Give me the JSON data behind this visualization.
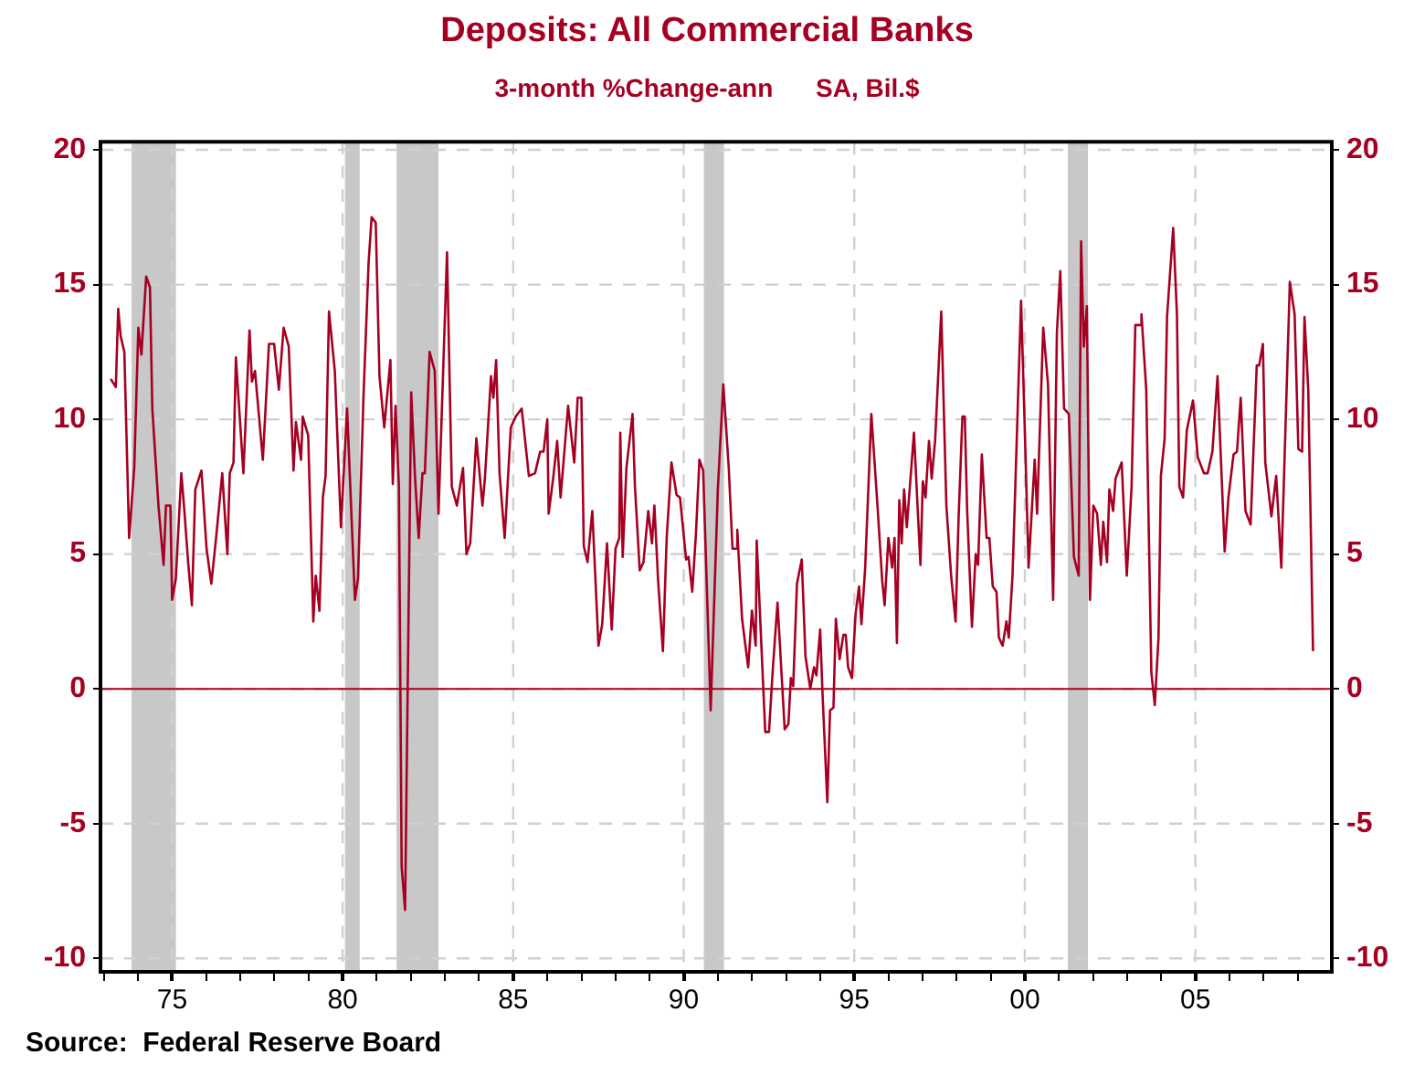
{
  "chart_data": {
    "type": "line",
    "title": "Deposits: All Commercial Banks",
    "subtitle": "3-month %Change-ann      SA, Bil.$",
    "annotations": [
      "Source:  Federal Reserve Board"
    ],
    "x": [
      1973.2,
      1973.35,
      1973.42,
      1973.49,
      1973.6,
      1973.74,
      1973.89,
      1974.01,
      1974.1,
      1974.24,
      1974.35,
      1974.42,
      1974.6,
      1974.75,
      1974.82,
      1974.95,
      1975.0,
      1975.11,
      1975.27,
      1975.36,
      1975.47,
      1975.58,
      1975.68,
      1975.86,
      1976.01,
      1976.15,
      1976.29,
      1976.47,
      1976.62,
      1976.69,
      1976.8,
      1976.87,
      1977.09,
      1977.27,
      1977.34,
      1977.43,
      1977.66,
      1977.84,
      1977.99,
      1978.13,
      1978.27,
      1978.42,
      1978.56,
      1978.63,
      1978.78,
      1978.83,
      1978.99,
      1979.14,
      1979.21,
      1979.32,
      1979.42,
      1979.5,
      1979.6,
      1979.77,
      1979.95,
      1980.13,
      1980.36,
      1980.45,
      1980.61,
      1980.76,
      1980.85,
      1980.97,
      1981.08,
      1981.22,
      1981.4,
      1981.47,
      1981.55,
      1981.65,
      1981.73,
      1981.83,
      1982.01,
      1982.12,
      1982.23,
      1982.34,
      1982.41,
      1982.55,
      1982.7,
      1982.81,
      1983.06,
      1983.2,
      1983.35,
      1983.53,
      1983.63,
      1983.74,
      1983.92,
      1984.1,
      1984.17,
      1984.35,
      1984.42,
      1984.5,
      1984.6,
      1984.75,
      1984.93,
      1985.07,
      1985.25,
      1985.46,
      1985.64,
      1985.79,
      1985.89,
      1986.0,
      1986.04,
      1986.18,
      1986.29,
      1986.39,
      1986.61,
      1986.79,
      1986.89,
      1987.0,
      1987.07,
      1987.18,
      1987.32,
      1987.5,
      1987.61,
      1987.75,
      1987.89,
      1988.0,
      1988.11,
      1988.14,
      1988.21,
      1988.32,
      1988.5,
      1988.57,
      1988.71,
      1988.82,
      1988.96,
      1989.07,
      1989.14,
      1989.25,
      1989.39,
      1989.5,
      1989.64,
      1989.79,
      1989.89,
      1990.07,
      1990.14,
      1990.25,
      1990.36,
      1990.46,
      1990.57,
      1990.79,
      1991.0,
      1991.16,
      1991.32,
      1991.43,
      1991.54,
      1991.57,
      1991.71,
      1991.89,
      1992.0,
      1992.11,
      1992.14,
      1992.39,
      1992.5,
      1992.61,
      1992.75,
      1992.96,
      1993.07,
      1993.14,
      1993.21,
      1993.32,
      1993.46,
      1993.57,
      1993.71,
      1993.82,
      1993.89,
      1994.0,
      1994.07,
      1994.21,
      1994.29,
      1994.39,
      1994.46,
      1994.57,
      1994.68,
      1994.75,
      1994.82,
      1994.93,
      1995.04,
      1995.14,
      1995.21,
      1995.32,
      1995.5,
      1995.68,
      1995.82,
      1995.89,
      1996.0,
      1996.11,
      1996.18,
      1996.25,
      1996.32,
      1996.39,
      1996.46,
      1996.54,
      1996.75,
      1996.94,
      1997.01,
      1997.09,
      1997.19,
      1997.27,
      1997.37,
      1997.55,
      1997.7,
      1997.84,
      1997.97,
      1998.06,
      1998.17,
      1998.24,
      1998.31,
      1998.45,
      1998.56,
      1998.63,
      1998.74,
      1998.88,
      1998.96,
      1999.06,
      1999.17,
      1999.24,
      1999.35,
      1999.46,
      1999.53,
      1999.64,
      1999.89,
      2000.0,
      2000.11,
      2000.29,
      2000.36,
      2000.54,
      2000.68,
      2000.83,
      2000.94,
      2001.04,
      2001.15,
      2001.29,
      2001.44,
      2001.58,
      2001.65,
      2001.73,
      2001.82,
      2001.91,
      2002.01,
      2002.12,
      2002.23,
      2002.3,
      2002.41,
      2002.48,
      2002.59,
      2002.66,
      2002.84,
      2002.99,
      2003.13,
      2003.24,
      2003.38,
      2003.42,
      2003.56,
      2003.71,
      2003.81,
      2003.92,
      2003.99,
      2004.1,
      2004.17,
      2004.35,
      2004.46,
      2004.53,
      2004.64,
      2004.75,
      2004.93,
      2005.07,
      2005.25,
      2005.36,
      2005.5,
      2005.65,
      2005.86,
      2005.97,
      2006.12,
      2006.22,
      2006.33,
      2006.47,
      2006.62,
      2006.8,
      2006.87,
      2006.98,
      2007.05,
      2007.23,
      2007.37,
      2007.52,
      2007.77,
      2007.91,
      2008.02,
      2008.13,
      2008.2,
      2008.31,
      2008.45
    ],
    "series": [
      {
        "color": "#a50021",
        "values": [
          11.5,
          11.2,
          14.1,
          13.1,
          12.5,
          5.6,
          8.2,
          13.4,
          12.4,
          15.3,
          14.9,
          10.4,
          6.8,
          4.6,
          6.8,
          6.8,
          3.3,
          4.1,
          8.0,
          6.6,
          4.7,
          3.1,
          7.4,
          8.1,
          5.2,
          3.9,
          5.6,
          8.0,
          5.0,
          8.0,
          8.4,
          12.3,
          8.0,
          13.3,
          11.4,
          11.8,
          8.5,
          12.8,
          12.8,
          11.1,
          13.4,
          12.7,
          8.1,
          9.9,
          8.5,
          10.1,
          9.4,
          2.5,
          4.2,
          2.9,
          7.1,
          7.9,
          14.0,
          11.8,
          6.0,
          10.4,
          3.3,
          4.1,
          10.8,
          15.8,
          17.5,
          17.3,
          11.6,
          9.7,
          12.2,
          7.6,
          10.5,
          7.5,
          -6.6,
          -8.2,
          11.0,
          7.9,
          5.6,
          8.0,
          8.0,
          12.5,
          11.8,
          6.5,
          16.2,
          7.5,
          6.8,
          8.2,
          5.0,
          5.4,
          9.3,
          6.8,
          7.8,
          11.6,
          10.8,
          12.2,
          8.0,
          5.6,
          9.7,
          10.1,
          10.4,
          7.9,
          8.0,
          8.8,
          8.8,
          10.0,
          6.5,
          7.9,
          9.2,
          7.1,
          10.5,
          8.4,
          10.8,
          10.8,
          5.3,
          4.7,
          6.6,
          1.6,
          2.4,
          5.4,
          2.2,
          5.2,
          5.6,
          9.5,
          4.9,
          8.2,
          10.2,
          7.5,
          4.4,
          4.7,
          6.6,
          5.4,
          6.8,
          4.0,
          1.4,
          5.6,
          8.4,
          7.2,
          7.1,
          4.8,
          4.9,
          3.6,
          5.8,
          8.5,
          8.1,
          -0.8,
          7.4,
          11.3,
          8.2,
          5.2,
          5.2,
          5.9,
          2.6,
          0.8,
          2.9,
          1.6,
          5.5,
          -1.6,
          -1.6,
          0.7,
          3.2,
          -1.5,
          -1.3,
          0.4,
          0.1,
          3.9,
          4.8,
          1.2,
          0.0,
          0.8,
          0.5,
          2.2,
          -0.2,
          -4.2,
          -0.8,
          -0.7,
          2.6,
          1.1,
          2.0,
          2.0,
          0.8,
          0.4,
          2.8,
          3.8,
          2.4,
          4.5,
          10.2,
          6.8,
          4.0,
          3.1,
          5.6,
          4.5,
          5.6,
          1.7,
          7.0,
          5.4,
          7.4,
          6.0,
          9.5,
          4.6,
          7.7,
          7.1,
          9.2,
          7.8,
          9.2,
          14.0,
          6.8,
          4.2,
          2.5,
          6.4,
          10.1,
          10.1,
          6.6,
          2.3,
          5.0,
          4.6,
          8.7,
          5.6,
          5.6,
          3.8,
          3.6,
          1.9,
          1.6,
          2.5,
          1.9,
          4.2,
          14.4,
          9.6,
          4.5,
          8.5,
          6.5,
          13.4,
          11.3,
          3.3,
          13.2,
          15.5,
          10.4,
          10.2,
          4.9,
          4.2,
          16.6,
          12.7,
          14.2,
          3.3,
          6.8,
          6.5,
          4.6,
          6.2,
          4.7,
          7.4,
          6.6,
          7.8,
          8.4,
          4.2,
          7.5,
          13.5,
          13.5,
          13.9,
          11.1,
          0.6,
          -0.6,
          1.9,
          7.9,
          9.3,
          13.8,
          17.1,
          13.9,
          7.5,
          7.1,
          9.6,
          10.7,
          8.6,
          8.0,
          8.0,
          8.8,
          11.6,
          5.1,
          7.1,
          8.7,
          8.8,
          10.8,
          6.6,
          6.1,
          12.0,
          12.0,
          12.8,
          8.4,
          6.4,
          7.9,
          4.5,
          15.1,
          13.9,
          8.9,
          8.8,
          13.8,
          11.1,
          1.4
        ]
      }
    ],
    "xlim": [
      1972.9,
      2009.0
    ],
    "xticks": [
      {
        "value": 1973,
        "label": null
      },
      {
        "value": 1974,
        "label": null
      },
      {
        "value": 1975,
        "label": "75"
      },
      {
        "value": 1976,
        "label": null
      },
      {
        "value": 1977,
        "label": null
      },
      {
        "value": 1978,
        "label": null
      },
      {
        "value": 1979,
        "label": null
      },
      {
        "value": 1980,
        "label": "80"
      },
      {
        "value": 1981,
        "label": null
      },
      {
        "value": 1982,
        "label": null
      },
      {
        "value": 1983,
        "label": null
      },
      {
        "value": 1984,
        "label": null
      },
      {
        "value": 1985,
        "label": "85"
      },
      {
        "value": 1986,
        "label": null
      },
      {
        "value": 1987,
        "label": null
      },
      {
        "value": 1988,
        "label": null
      },
      {
        "value": 1989,
        "label": null
      },
      {
        "value": 1990,
        "label": "90"
      },
      {
        "value": 1991,
        "label": null
      },
      {
        "value": 1992,
        "label": null
      },
      {
        "value": 1993,
        "label": null
      },
      {
        "value": 1994,
        "label": null
      },
      {
        "value": 1995,
        "label": "95"
      },
      {
        "value": 1996,
        "label": null
      },
      {
        "value": 1997,
        "label": null
      },
      {
        "value": 1998,
        "label": null
      },
      {
        "value": 1999,
        "label": null
      },
      {
        "value": 2000,
        "label": "00"
      },
      {
        "value": 2001,
        "label": null
      },
      {
        "value": 2002,
        "label": null
      },
      {
        "value": 2003,
        "label": null
      },
      {
        "value": 2004,
        "label": null
      },
      {
        "value": 2005,
        "label": "05"
      },
      {
        "value": 2006,
        "label": null
      },
      {
        "value": 2007,
        "label": null
      },
      {
        "value": 2008,
        "label": null
      }
    ],
    "ylim": [
      -10.5,
      20.3
    ],
    "yticks": [
      -10,
      -5,
      0,
      5,
      10,
      15,
      20
    ],
    "y2lim": [
      -10.5,
      20.3
    ],
    "y2ticks": [
      -10,
      -5,
      0,
      5,
      10,
      15,
      20
    ],
    "grid": true,
    "marker": "none",
    "line_style": "solid",
    "ref_lines": [
      {
        "axis": "y",
        "value": 0,
        "color": "#a50021"
      }
    ],
    "bands": [
      {
        "axis": "x",
        "from": 1973.81,
        "to": 1975.11,
        "color": "#c8c8c8"
      },
      {
        "axis": "x",
        "from": 1980.07,
        "to": 1980.5,
        "color": "#c8c8c8"
      },
      {
        "axis": "x",
        "from": 1981.58,
        "to": 1982.81,
        "color": "#c8c8c8"
      },
      {
        "axis": "x",
        "from": 1990.59,
        "to": 1991.18,
        "color": "#c8c8c8"
      },
      {
        "axis": "x",
        "from": 2001.26,
        "to": 2001.85,
        "color": "#c8c8c8"
      }
    ]
  }
}
